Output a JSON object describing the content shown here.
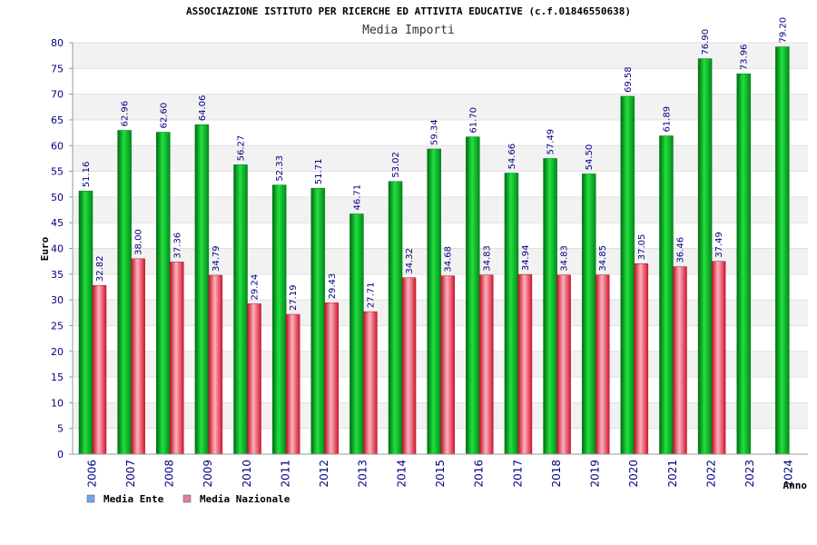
{
  "chart_data": {
    "type": "bar",
    "title": "ASSOCIAZIONE ISTITUTO PER RICERCHE ED ATTIVITA EDUCATIVE (c.f.01846550638)",
    "subtitle": "Media Importi",
    "xlabel": "Anno",
    "ylabel": "Euro",
    "ylim": [
      0,
      80
    ],
    "ytick_step": 5,
    "grid": true,
    "legend_position": "bottom-left",
    "categories": [
      "2006",
      "2007",
      "2008",
      "2009",
      "2010",
      "2011",
      "2012",
      "2013",
      "2014",
      "2015",
      "2016",
      "2017",
      "2018",
      "2019",
      "2020",
      "2021",
      "2022",
      "2023",
      "2024"
    ],
    "series": [
      {
        "name": "Media Ente",
        "color": "#00b020",
        "legend_color": "#6aa8e8",
        "values": [
          51.16,
          62.96,
          62.6,
          64.06,
          56.27,
          52.33,
          51.71,
          46.71,
          53.02,
          59.34,
          61.7,
          54.66,
          57.49,
          54.5,
          69.58,
          61.89,
          76.9,
          73.96,
          79.2
        ],
        "labels": [
          "51.16",
          "62.96",
          "62.60",
          "64.06",
          "56.27",
          "52.33",
          "51.71",
          "46.71",
          "53.02",
          "59.34",
          "61.70",
          "54.66",
          "57.49",
          "54.50",
          "69.58",
          "61.89",
          "76.90",
          "73.96",
          "79.20"
        ]
      },
      {
        "name": "Media Nazionale",
        "color": "#e0203a",
        "legend_color": "#e080a0",
        "values": [
          32.82,
          38.0,
          37.36,
          34.79,
          29.24,
          27.19,
          29.43,
          27.71,
          34.32,
          34.68,
          34.83,
          34.94,
          34.83,
          34.85,
          37.05,
          36.46,
          37.49,
          null,
          null
        ],
        "labels": [
          "32.82",
          "38.00",
          "37.36",
          "34.79",
          "29.24",
          "27.19",
          "29.43",
          "27.71",
          "34.32",
          "34.68",
          "34.83",
          "34.94",
          "34.83",
          "34.85",
          "37.05",
          "36.46",
          "37.49",
          null,
          null
        ]
      }
    ]
  }
}
